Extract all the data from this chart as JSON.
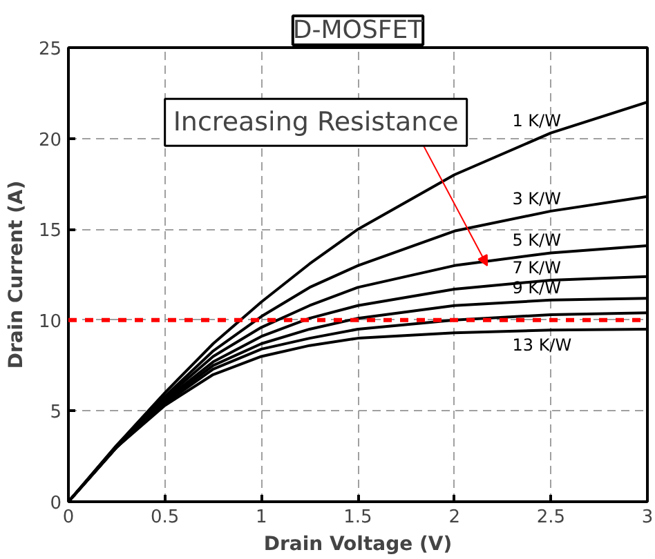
{
  "chart_data": {
    "type": "line",
    "title": "D-MOSFET",
    "xlabel": "Drain Voltage (V)",
    "ylabel": "Drain Current (A)",
    "x": [
      0,
      0.25,
      0.5,
      0.75,
      1,
      1.25,
      1.5,
      2,
      2.5,
      3
    ],
    "series": [
      {
        "name": "1 K/W",
        "color": "#000000",
        "values": [
          0,
          3.1,
          6.0,
          8.7,
          11.0,
          13.1,
          15.0,
          18.0,
          20.3,
          22.0
        ]
      },
      {
        "name": "3 K/W",
        "color": "#000000",
        "values": [
          0,
          3.1,
          5.8,
          8.3,
          10.2,
          11.8,
          13.0,
          14.9,
          16.0,
          16.8
        ]
      },
      {
        "name": "5 K/W",
        "color": "#000000",
        "values": [
          0,
          3.0,
          5.7,
          8.0,
          9.6,
          10.8,
          11.8,
          13.0,
          13.7,
          14.1
        ]
      },
      {
        "name": "7 K/W",
        "color": "#000000",
        "values": [
          0,
          3.0,
          5.6,
          7.7,
          9.1,
          10.1,
          10.8,
          11.7,
          12.2,
          12.4
        ]
      },
      {
        "name": "9 K/W",
        "color": "#000000",
        "values": [
          0,
          3.0,
          5.5,
          7.5,
          8.7,
          9.5,
          10.1,
          10.8,
          11.1,
          11.2
        ]
      },
      {
        "color": "#000000",
        "values": [
          0,
          3.0,
          5.4,
          7.3,
          8.4,
          9.0,
          9.5,
          10.0,
          10.3,
          10.4
        ]
      },
      {
        "name": "13 K/W",
        "color": "#000000",
        "values": [
          0,
          3.0,
          5.3,
          7.0,
          8.0,
          8.6,
          9.0,
          9.3,
          9.45,
          9.5
        ]
      }
    ],
    "xlim": [
      0,
      3
    ],
    "ylim": [
      0,
      25
    ],
    "xticks": [
      0,
      0.5,
      1,
      1.5,
      2,
      2.5,
      3
    ],
    "yticks": [
      0,
      5,
      10,
      15,
      20,
      25
    ],
    "grid": true,
    "marker": "none",
    "line_style": "solid",
    "ref_lines": [
      {
        "axis": "y",
        "value": 10,
        "color": "#ff0000",
        "line_style": "dashed"
      }
    ],
    "annotations": [
      {
        "text": "Increasing Resistance",
        "x": 2.17,
        "y": 13.0
      }
    ]
  }
}
